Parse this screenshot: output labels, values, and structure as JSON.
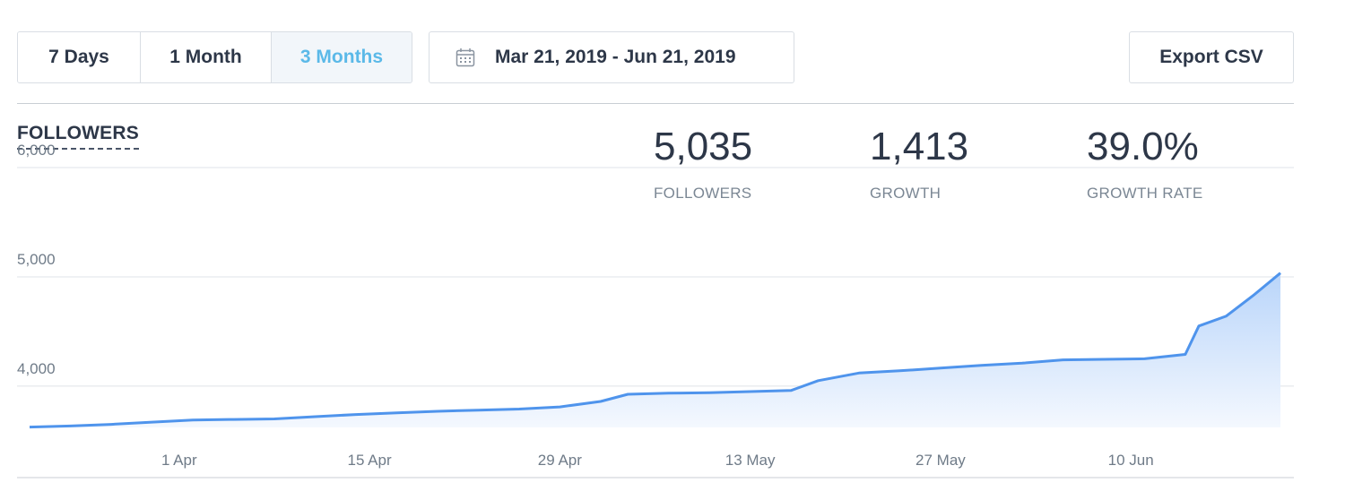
{
  "toolbar": {
    "ranges": [
      {
        "label": "7 Days",
        "active": false
      },
      {
        "label": "1 Month",
        "active": false
      },
      {
        "label": "3 Months",
        "active": true
      }
    ],
    "date_range": "Mar 21, 2019 - Jun 21, 2019",
    "export_label": "Export CSV"
  },
  "section_title": "FOLLOWERS",
  "stats": [
    {
      "value": "5,035",
      "label": "FOLLOWERS"
    },
    {
      "value": "1,413",
      "label": "GROWTH"
    },
    {
      "value": "39.0%",
      "label": "GROWTH RATE"
    }
  ],
  "colors": {
    "accent": "#5bb9e8",
    "line": "#4f94ec",
    "area_top": "#b9d5fa",
    "area_bottom": "#f4f8fe",
    "grid": "#dfe3e8"
  },
  "chart_data": {
    "type": "area",
    "x_start": "2019-03-21",
    "x_end": "2019-06-21",
    "xticks": [
      {
        "label": "1 Apr",
        "date": "2019-04-01"
      },
      {
        "label": "15 Apr",
        "date": "2019-04-15"
      },
      {
        "label": "29 Apr",
        "date": "2019-04-29"
      },
      {
        "label": "13 May",
        "date": "2019-05-13"
      },
      {
        "label": "27 May",
        "date": "2019-05-27"
      },
      {
        "label": "10 Jun",
        "date": "2019-06-10"
      }
    ],
    "yticks": [
      {
        "label": "4,000",
        "value": 4000
      },
      {
        "label": "5,000",
        "value": 5000
      },
      {
        "label": "6,000",
        "value": 6000
      }
    ],
    "ylim": [
      3622,
      6000
    ],
    "grid": true,
    "series": [
      {
        "x": [
          "2019-03-21",
          "2019-03-24",
          "2019-03-27",
          "2019-03-30",
          "2019-04-02",
          "2019-04-05",
          "2019-04-08",
          "2019-04-11",
          "2019-04-14",
          "2019-04-17",
          "2019-04-20",
          "2019-04-23",
          "2019-04-26",
          "2019-04-29",
          "2019-05-02",
          "2019-05-04",
          "2019-05-07",
          "2019-05-10",
          "2019-05-13",
          "2019-05-16",
          "2019-05-18",
          "2019-05-21",
          "2019-05-24",
          "2019-05-27",
          "2019-05-30",
          "2019-06-02",
          "2019-06-05",
          "2019-06-08",
          "2019-06-11",
          "2019-06-14",
          "2019-06-15",
          "2019-06-17",
          "2019-06-19",
          "2019-06-21"
        ],
        "y": [
          3625,
          3635,
          3650,
          3670,
          3690,
          3695,
          3700,
          3720,
          3740,
          3755,
          3770,
          3780,
          3790,
          3810,
          3860,
          3925,
          3935,
          3940,
          3950,
          3960,
          4050,
          4120,
          4140,
          4165,
          4190,
          4210,
          4240,
          4245,
          4250,
          4290,
          4550,
          4640,
          4830,
          5035
        ]
      }
    ]
  }
}
